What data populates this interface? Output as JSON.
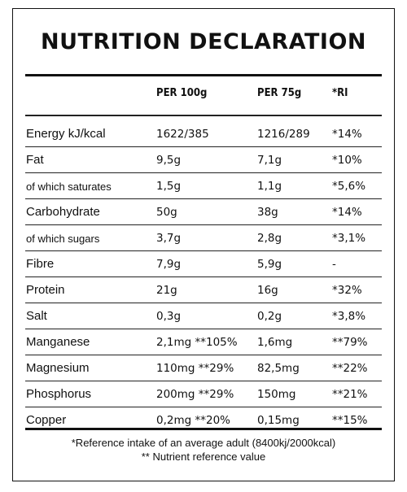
{
  "title": "NUTRITION DECLARATION",
  "headers": {
    "per100": "PER 100g",
    "per75": "PER 75g",
    "ri": "*RI"
  },
  "rows": [
    {
      "label": "Energy kJ/kcal",
      "per100": "1622/385",
      "per75": "1216/289",
      "ri": "*14%"
    },
    {
      "label": "Fat",
      "per100": "9,5g",
      "per75": "7,1g",
      "ri": "*10%"
    },
    {
      "label": "of which saturates",
      "per100": "1,5g",
      "per75": "1,1g",
      "ri": "*5,6%"
    },
    {
      "label": "Carbohydrate",
      "per100": "50g",
      "per75": "38g",
      "ri": "*14%"
    },
    {
      "label": "of which sugars",
      "per100": "3,7g",
      "per75": "2,8g",
      "ri": "*3,1%"
    },
    {
      "label": "Fibre",
      "per100": "7,9g",
      "per75": "5,9g",
      "ri": "-"
    },
    {
      "label": "Protein",
      "per100": "21g",
      "per75": "16g",
      "ri": "*32%"
    },
    {
      "label": "Salt",
      "per100": "0,3g",
      "per75": "0,2g",
      "ri": "*3,8%"
    },
    {
      "label": "Manganese",
      "per100": "2,1mg **105%",
      "per75": "1,6mg",
      "ri": "**79%"
    },
    {
      "label": "Magnesium",
      "per100": "110mg **29%",
      "per75": "82,5mg",
      "ri": "**22%"
    },
    {
      "label": "Phosphorus",
      "per100": "200mg **29%",
      "per75": "150mg",
      "ri": "**21%"
    },
    {
      "label": "Copper",
      "per100": "0,2mg **20%",
      "per75": "0,15mg",
      "ri": "**15%"
    }
  ],
  "footnotes": {
    "ri_note": "*Reference intake of an average adult (8400kj/2000kcal)",
    "nrv_note": "** Nutrient reference value"
  }
}
